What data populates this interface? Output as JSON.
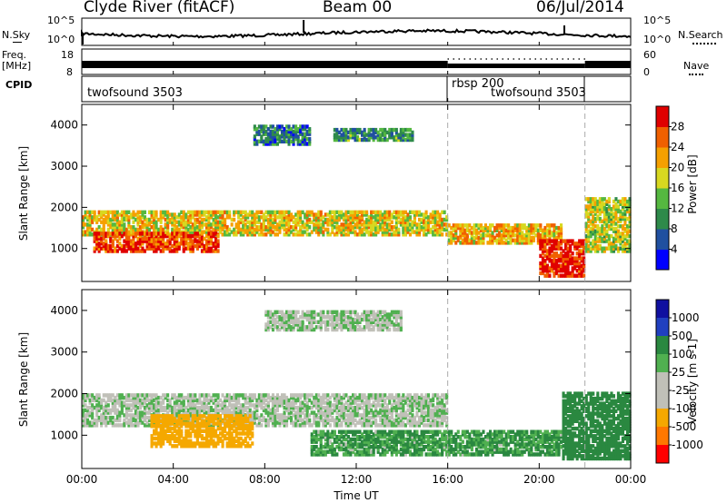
{
  "header": {
    "station": "Clyde River (fitACF)",
    "beam": "Beam 00",
    "date": "06/Jul/2014"
  },
  "top_panels": {
    "nsky_label": "N.Sky",
    "nsky_ticks": [
      "10^5",
      "10^0"
    ],
    "nsearch_label": "N.Search",
    "nsearch_ticks": [
      "10^5",
      "10^0"
    ],
    "freq_label_1": "Freq.",
    "freq_label_2": "[MHz]",
    "freq_ticks": [
      "18",
      "8"
    ],
    "nave_label": "Nave",
    "nave_ticks": [
      "60",
      "0"
    ],
    "cpid_label": "CPID",
    "cpid_segments": [
      {
        "name": "twofsound 3503",
        "start": "00:00",
        "end": "16:00"
      },
      {
        "name": "rbsp 200",
        "start": "16:00",
        "end": "22:00"
      },
      {
        "name": "twofsound 3503",
        "start": "22:00",
        "end": "24:00"
      }
    ]
  },
  "colors": {
    "power_scale": [
      "#0000ff",
      "#2050a0",
      "#2e8a4a",
      "#55b840",
      "#d8d820",
      "#f5a000",
      "#f06000",
      "#e00000"
    ],
    "velocity_scale": [
      "#ff0000",
      "#ff7800",
      "#f5a800",
      "#c0c0b8",
      "#c0c0b8",
      "#50b050",
      "#2a8840",
      "#2040c0",
      "#1010a0"
    ]
  },
  "chart_data": [
    {
      "type": "heatmap",
      "panel": "power",
      "xlabel": "Time UT",
      "ylabel": "Slant Range [km]",
      "xlim": [
        0,
        24
      ],
      "ylim": [
        200,
        4500
      ],
      "x_ticks": [
        "00:00",
        "04:00",
        "08:00",
        "12:00",
        "16:00",
        "20:00",
        "00:00"
      ],
      "y_ticks": [
        "1000",
        "2000",
        "3000",
        "4000"
      ],
      "colorbar_label": "Power [dB]",
      "colorbar_ticks": [
        "4",
        "8",
        "12",
        "16",
        "20",
        "24",
        "28"
      ],
      "colorbar_range": [
        0,
        30
      ],
      "features": [
        {
          "t0": 0.0,
          "t1": 16.0,
          "r0": 1300,
          "r1": 1900,
          "value": 18
        },
        {
          "t0": 0.5,
          "t1": 6.0,
          "r0": 900,
          "r1": 1400,
          "value": 26
        },
        {
          "t0": 16.0,
          "t1": 21.0,
          "r0": 1100,
          "r1": 1600,
          "value": 20
        },
        {
          "t0": 20.0,
          "t1": 22.0,
          "r0": 300,
          "r1": 1200,
          "value": 28
        },
        {
          "t0": 22.0,
          "t1": 24.0,
          "r0": 900,
          "r1": 2200,
          "value": 16
        },
        {
          "t0": 7.5,
          "t1": 10.0,
          "r0": 3500,
          "r1": 4000,
          "value": 8
        },
        {
          "t0": 11.0,
          "t1": 14.5,
          "r0": 3600,
          "r1": 3900,
          "value": 10
        }
      ]
    },
    {
      "type": "heatmap",
      "panel": "velocity",
      "xlabel": "Time UT",
      "ylabel": "Slant Range [km]",
      "xlim": [
        0,
        24
      ],
      "ylim": [
        200,
        4500
      ],
      "x_ticks": [
        "00:00",
        "04:00",
        "08:00",
        "12:00",
        "16:00",
        "20:00",
        "00:00"
      ],
      "y_ticks": [
        "1000",
        "2000",
        "3000",
        "4000"
      ],
      "colorbar_label": "Velocity [m s-1]",
      "colorbar_ticks": [
        "1000",
        "500",
        "100",
        "25",
        "-25",
        "-100",
        "-500",
        "-1000"
      ],
      "features": [
        {
          "t0": 0.0,
          "t1": 16.0,
          "r0": 1200,
          "r1": 2000,
          "value": 0
        },
        {
          "t0": 3.0,
          "t1": 7.5,
          "r0": 700,
          "r1": 1500,
          "value": -200
        },
        {
          "t0": 10.0,
          "t1": 21.0,
          "r0": 500,
          "r1": 1100,
          "value": 120
        },
        {
          "t0": 21.0,
          "t1": 24.0,
          "r0": 400,
          "r1": 2000,
          "value": 300
        },
        {
          "t0": 8.0,
          "t1": 14.0,
          "r0": 3500,
          "r1": 4000,
          "value": 0
        }
      ]
    }
  ]
}
